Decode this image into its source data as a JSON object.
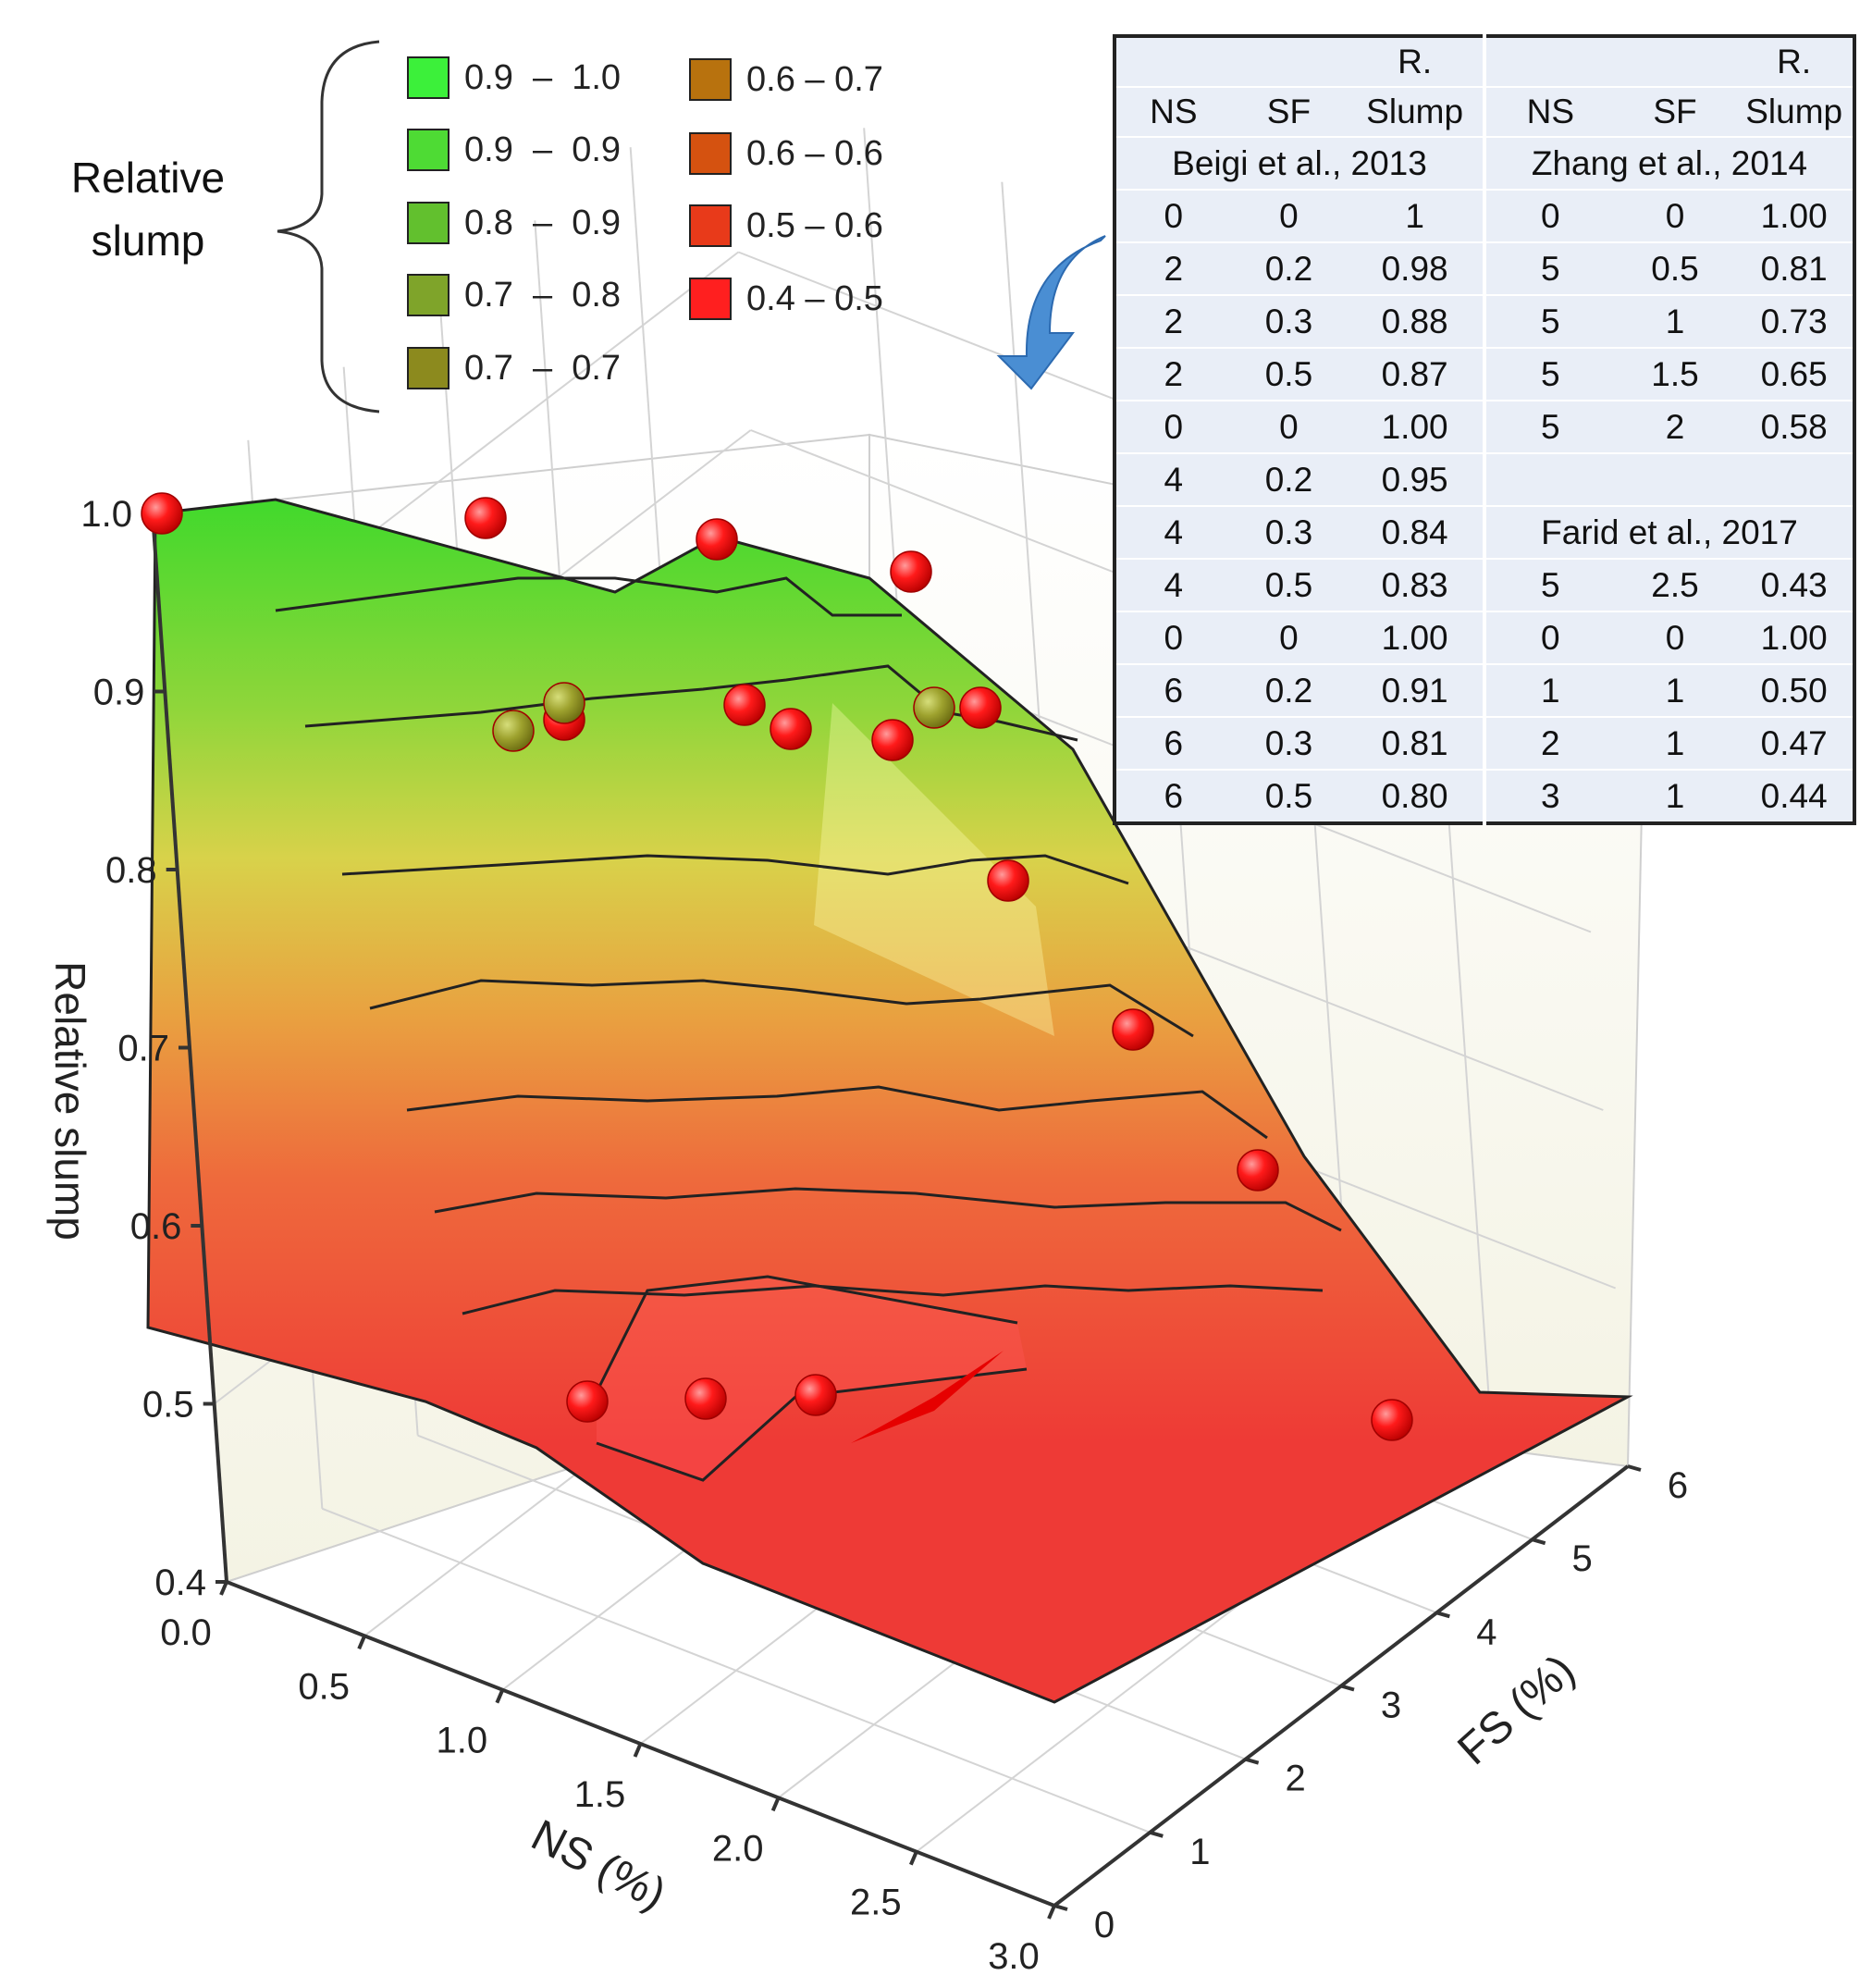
{
  "chart_data": {
    "type": "surface-3d",
    "title": "",
    "xlabel": "NS (%)",
    "ylabel": "FS (%)",
    "zlabel": "Relative slump",
    "x_ticks": [
      "0.0",
      "0.5",
      "1.0",
      "1.5",
      "2.0",
      "2.5",
      "3.0"
    ],
    "y_ticks": [
      "0",
      "1",
      "2",
      "3",
      "4",
      "5",
      "6"
    ],
    "z_ticks": [
      "0.4",
      "0.5",
      "0.6",
      "0.7",
      "0.8",
      "0.9",
      "1.0"
    ],
    "xlim": [
      0,
      3
    ],
    "ylim": [
      0,
      6
    ],
    "zlim": [
      0.4,
      1.0
    ],
    "legend": {
      "title": "Relative\nslump",
      "entries": [
        {
          "label": "0.9  –  1.0",
          "color": "#3cf03a"
        },
        {
          "label": "0.9  –  0.9",
          "color": "#4edb34"
        },
        {
          "label": "0.8  –  0.9",
          "color": "#62c02e"
        },
        {
          "label": "0.7  –  0.8",
          "color": "#7fa42a"
        },
        {
          "label": "0.7  –  0.7",
          "color": "#8c8a1e"
        },
        {
          "label": "0.6 – 0.7",
          "color": "#b8720e"
        },
        {
          "label": "0.6 – 0.6",
          "color": "#d55210"
        },
        {
          "label": "0.5 – 0.6",
          "color": "#e83a1a"
        },
        {
          "label": "0.4 – 0.5",
          "color": "#ff1f1f"
        }
      ]
    },
    "points": [
      {
        "ns": 0,
        "fs": 0,
        "slump": 1.0
      },
      {
        "ns": 2,
        "fs": 0.2,
        "slump": 0.98
      },
      {
        "ns": 2,
        "fs": 0.3,
        "slump": 0.88
      },
      {
        "ns": 2,
        "fs": 0.5,
        "slump": 0.87
      },
      {
        "ns": 4,
        "fs": 0.2,
        "slump": 0.95
      },
      {
        "ns": 4,
        "fs": 0.3,
        "slump": 0.84
      },
      {
        "ns": 4,
        "fs": 0.5,
        "slump": 0.83
      },
      {
        "ns": 6,
        "fs": 0.2,
        "slump": 0.91
      },
      {
        "ns": 6,
        "fs": 0.3,
        "slump": 0.81
      },
      {
        "ns": 6,
        "fs": 0.5,
        "slump": 0.8
      },
      {
        "ns": 5,
        "fs": 0.5,
        "slump": 0.81
      },
      {
        "ns": 5,
        "fs": 1,
        "slump": 0.73
      },
      {
        "ns": 5,
        "fs": 1.5,
        "slump": 0.65
      },
      {
        "ns": 5,
        "fs": 2,
        "slump": 0.58
      },
      {
        "ns": 5,
        "fs": 2.5,
        "slump": 0.43
      },
      {
        "ns": 1,
        "fs": 1,
        "slump": 0.5
      },
      {
        "ns": 2,
        "fs": 1,
        "slump": 0.47
      },
      {
        "ns": 3,
        "fs": 1,
        "slump": 0.44
      }
    ]
  },
  "table": {
    "header_top": [
      "",
      "",
      "R.",
      "",
      "",
      "R."
    ],
    "header_bottom": [
      "NS",
      "SF",
      "Slump",
      "NS",
      "SF",
      "Slump"
    ],
    "rows": [
      [
        "Beigi et al., 2013",
        "Zhang et al., 2014"
      ],
      [
        "0",
        "0",
        "1",
        "0",
        "0",
        "1.00"
      ],
      [
        "2",
        "0.2",
        "0.98",
        "5",
        "0.5",
        "0.81"
      ],
      [
        "2",
        "0.3",
        "0.88",
        "5",
        "1",
        "0.73"
      ],
      [
        "2",
        "0.5",
        "0.87",
        "5",
        "1.5",
        "0.65"
      ],
      [
        "0",
        "0",
        "1.00",
        "5",
        "2",
        "0.58"
      ],
      [
        "4",
        "0.2",
        "0.95",
        "",
        "",
        ""
      ],
      [
        "4",
        "0.3",
        "0.84",
        "Farid  et al., 2017"
      ],
      [
        "4",
        "0.5",
        "0.83",
        "5",
        "2.5",
        "0.43"
      ],
      [
        "0",
        "0",
        "1.00",
        "0",
        "0",
        "1.00"
      ],
      [
        "6",
        "0.2",
        "0.91",
        "1",
        "1",
        "0.50"
      ],
      [
        "6",
        "0.3",
        "0.81",
        "2",
        "1",
        "0.47"
      ],
      [
        "6",
        "0.5",
        "0.80",
        "3",
        "1",
        "0.44"
      ]
    ]
  }
}
